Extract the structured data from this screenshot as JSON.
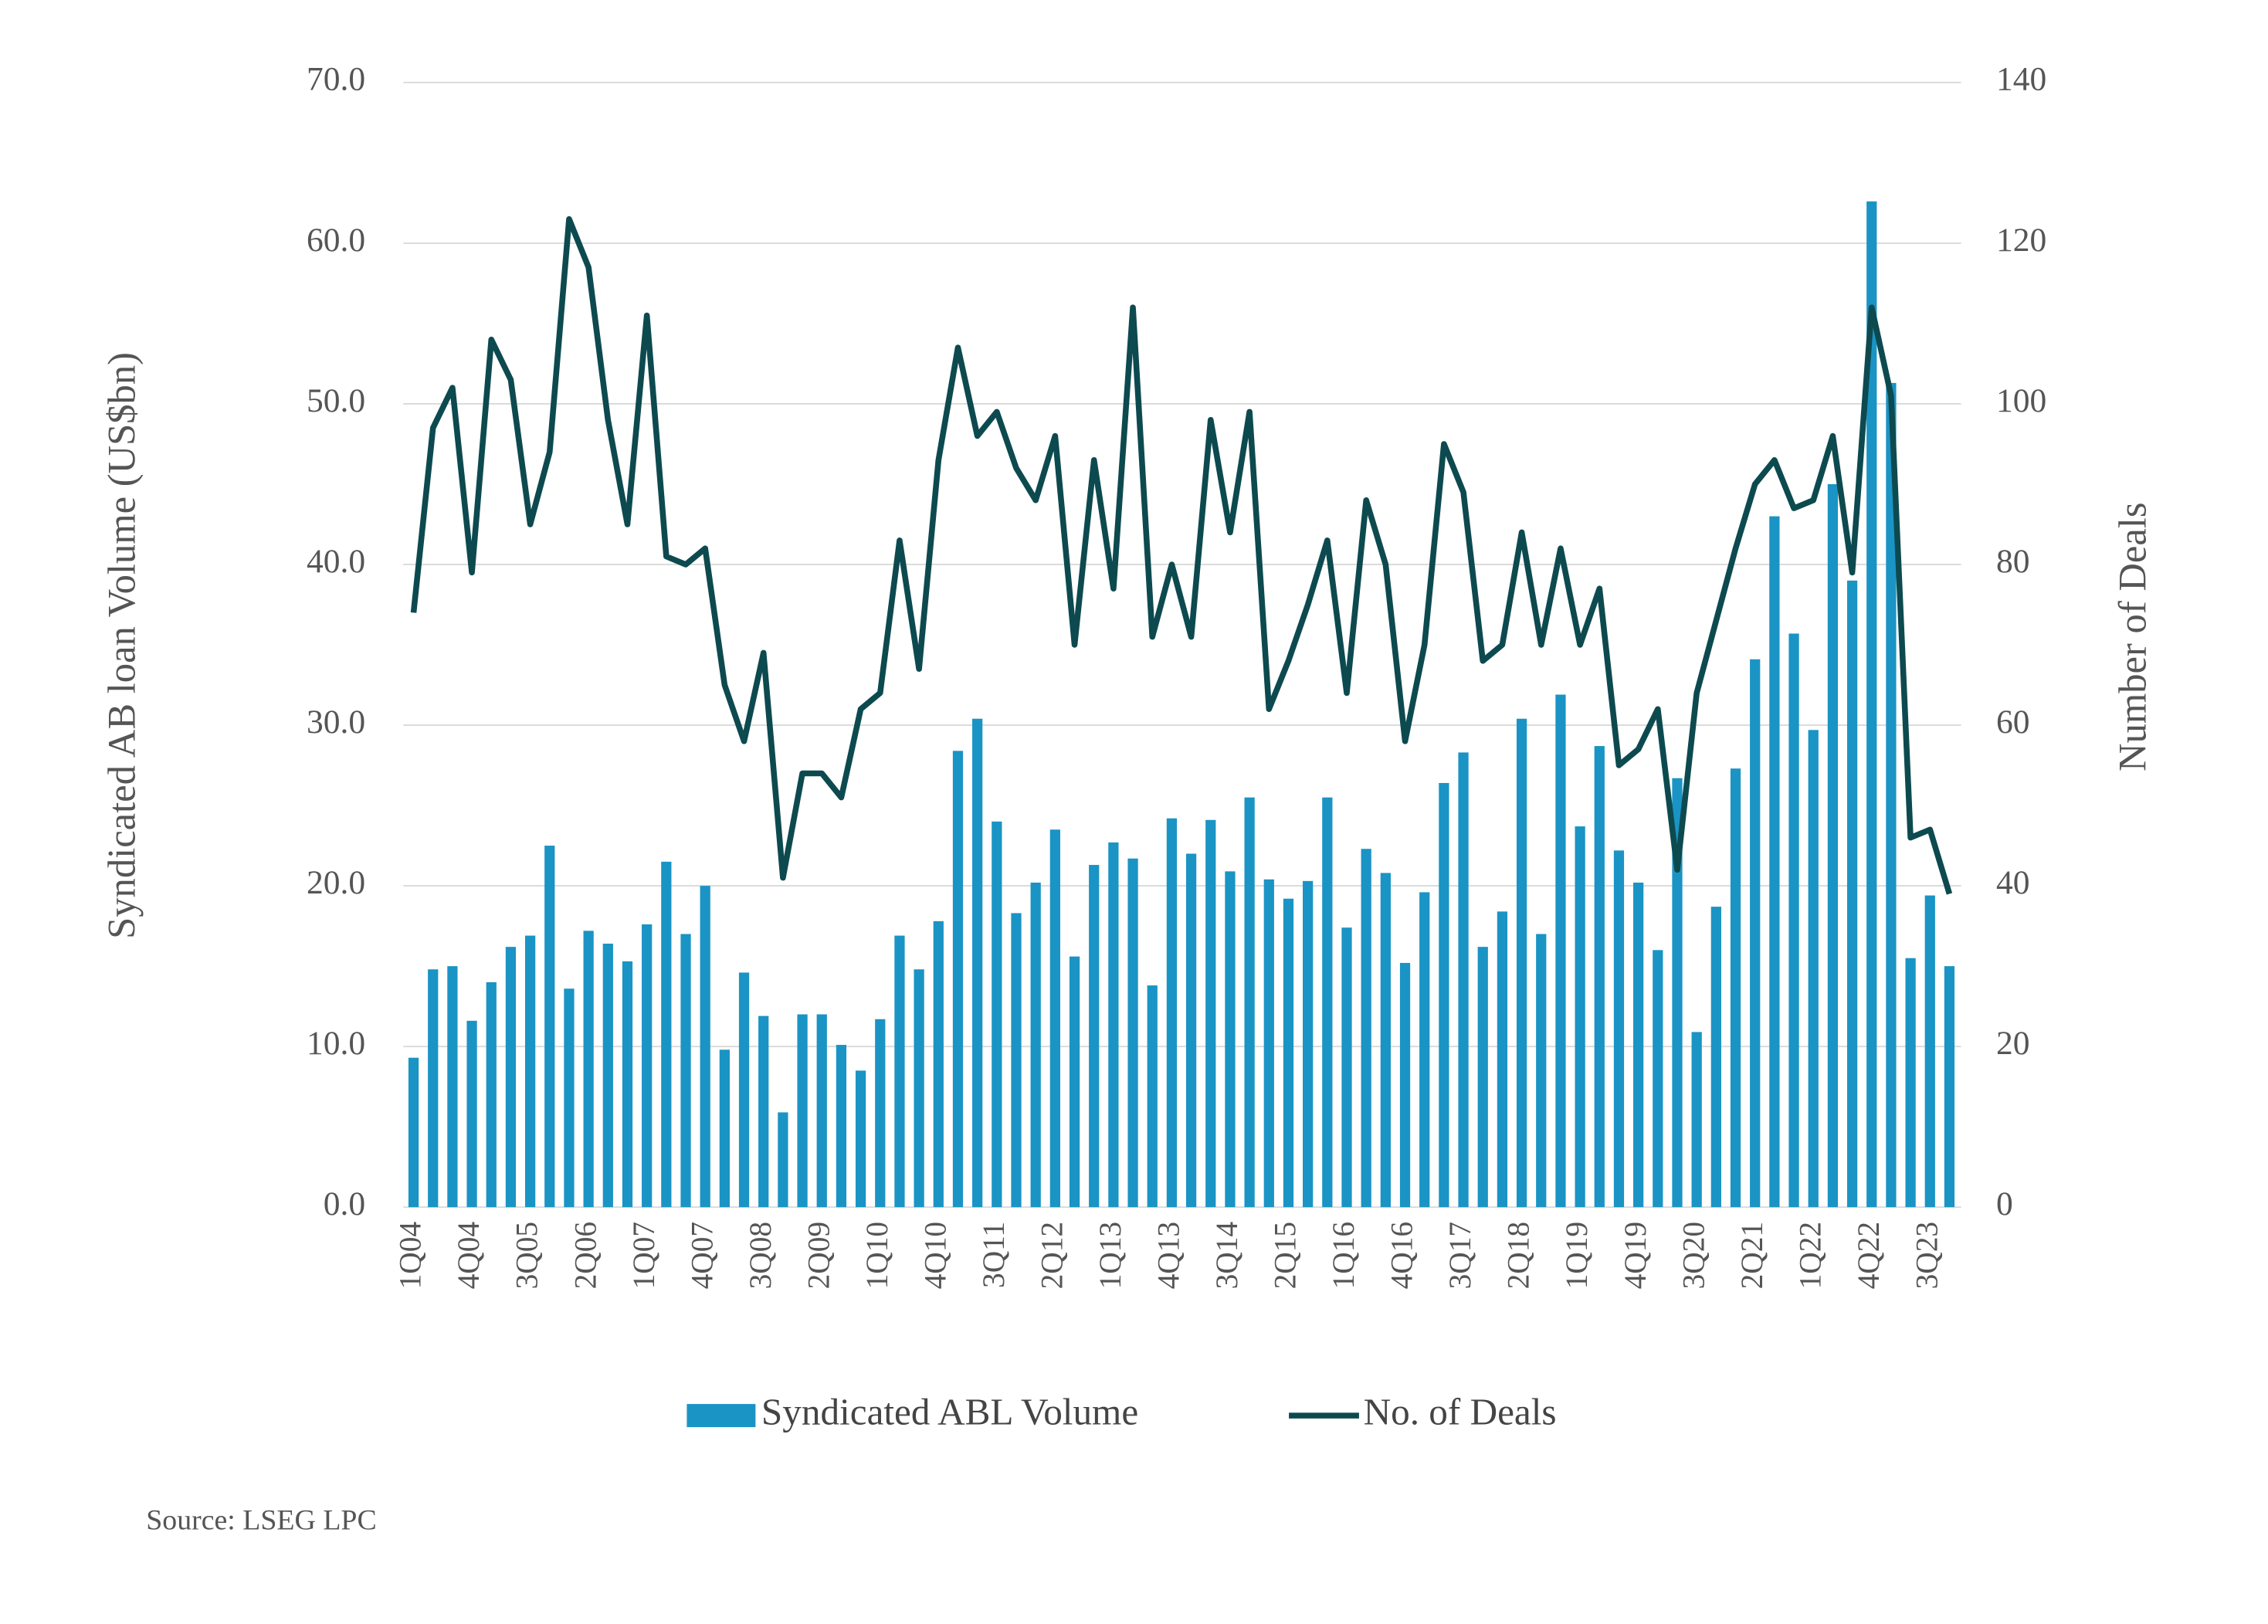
{
  "chart_data": {
    "type": "bar_line",
    "y_label": "Syndicated AB loan Volume (US$bn)",
    "y2_label": "Number of Deals",
    "source": "Source:  LSEG LPC",
    "categories": [
      "1Q04",
      null,
      null,
      "4Q04",
      null,
      null,
      "3Q05",
      null,
      null,
      "2Q06",
      null,
      null,
      "1Q07",
      null,
      null,
      "4Q07",
      null,
      null,
      "3Q08",
      null,
      null,
      "2Q09",
      null,
      null,
      "1Q10",
      null,
      null,
      "4Q10",
      null,
      null,
      "3Q11",
      null,
      null,
      "2Q12",
      null,
      null,
      "1Q13",
      null,
      null,
      "4Q13",
      null,
      null,
      "3Q14",
      null,
      null,
      "2Q15",
      null,
      null,
      "1Q16",
      null,
      null,
      "4Q16",
      null,
      null,
      "3Q17",
      null,
      null,
      "2Q18",
      null,
      null,
      "1Q19",
      null,
      null,
      "4Q19",
      null,
      null,
      "3Q20",
      null,
      null,
      "2Q21",
      null,
      null,
      "1Q22",
      null,
      null,
      "4Q22",
      null,
      null,
      "3Q23",
      null
    ],
    "series": [
      {
        "name": "Syndicated ABL Volume",
        "color": "#1a94c4",
        "kind": "bar",
        "values": [
          9.3,
          14.8,
          15.0,
          11.6,
          14.0,
          16.2,
          16.9,
          22.5,
          13.6,
          17.2,
          16.4,
          15.3,
          17.6,
          21.5,
          17.0,
          20.0,
          9.8,
          14.6,
          11.9,
          5.9,
          12.0,
          12.0,
          10.1,
          8.5,
          11.7,
          16.9,
          14.8,
          17.8,
          28.4,
          30.4,
          24.0,
          18.3,
          20.2,
          23.5,
          15.6,
          21.3,
          22.7,
          21.7,
          13.8,
          24.2,
          22.0,
          24.1,
          20.9,
          25.5,
          20.4,
          19.2,
          20.3,
          25.5,
          17.4,
          22.3,
          20.8,
          15.2,
          19.6,
          26.4,
          28.3,
          16.2,
          18.4,
          30.4,
          17.0,
          31.9,
          23.7,
          28.7,
          22.2,
          20.2,
          16.0,
          26.7,
          10.9,
          18.7,
          27.3,
          34.1,
          43.0,
          35.7,
          29.7,
          45.0,
          39.0,
          62.6,
          51.3,
          15.5,
          19.4,
          15.0
        ]
      },
      {
        "name": "No. of Deals",
        "color": "#0d4a4f",
        "kind": "line",
        "axis": "y2",
        "values": [
          74,
          97,
          102,
          79,
          108,
          103,
          85,
          94,
          123,
          117,
          98,
          85,
          111,
          81,
          80,
          82,
          65,
          58,
          69,
          41,
          54,
          54,
          51,
          62,
          64,
          83,
          67,
          93,
          107,
          96,
          99,
          92,
          88,
          96,
          70,
          93,
          77,
          112,
          71,
          80,
          71,
          98,
          84,
          99,
          62,
          68,
          75,
          83,
          64,
          88,
          80,
          58,
          70,
          95,
          89,
          68,
          70,
          84,
          70,
          82,
          70,
          77,
          55,
          57,
          62,
          42,
          64,
          73,
          82,
          90,
          93,
          87,
          88,
          96,
          79,
          112,
          101,
          46,
          47,
          39
        ]
      }
    ],
    "ylim": [
      0,
      70
    ],
    "yticks": [
      {
        "value": 0,
        "label": "0.0"
      },
      {
        "value": 10,
        "label": "10.0"
      },
      {
        "value": 20,
        "label": "20.0"
      },
      {
        "value": 30,
        "label": "30.0"
      },
      {
        "value": 40,
        "label": "40.0"
      },
      {
        "value": 50,
        "label": "50.0"
      },
      {
        "value": 60,
        "label": "60.0"
      },
      {
        "value": 70,
        "label": "70.0"
      }
    ],
    "y2lim": [
      0,
      140
    ],
    "y2ticks": [
      0,
      20,
      40,
      60,
      80,
      100,
      120,
      140
    ],
    "grid": true,
    "legend": "bottom"
  }
}
